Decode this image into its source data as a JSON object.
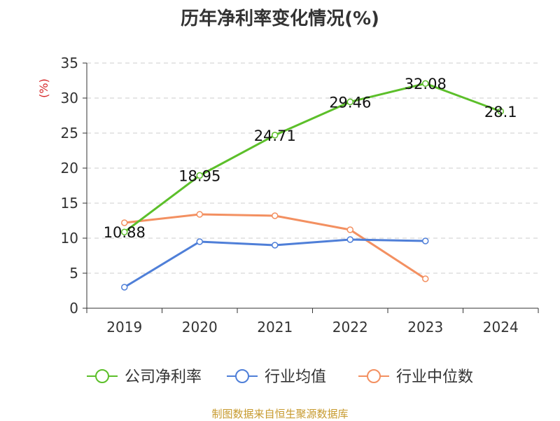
{
  "title": "历年净利率变化情况(%)",
  "source": "制图数据来自恒生聚源数据库",
  "chart_data": {
    "type": "line",
    "title": "历年净利率变化情况(%)",
    "ylabel": "(%)",
    "xlabel": "",
    "categories": [
      "2019",
      "2020",
      "2021",
      "2022",
      "2023",
      "2024"
    ],
    "ylim": [
      0,
      35
    ],
    "yticks": [
      0,
      5,
      10,
      15,
      20,
      25,
      30,
      35
    ],
    "grid": true,
    "legend_position": "bottom",
    "series": [
      {
        "name": "公司净利率",
        "color": "#5cbf2a",
        "values": [
          10.88,
          18.95,
          24.71,
          29.46,
          32.08,
          28.1
        ],
        "labels": [
          "10.88",
          "18.95",
          "24.71",
          "29.46",
          "32.08",
          "28.1"
        ]
      },
      {
        "name": "行业均值",
        "color": "#4f7fd8",
        "values": [
          3.0,
          9.5,
          9.0,
          9.8,
          9.6,
          null
        ]
      },
      {
        "name": "行业中位数",
        "color": "#f39061",
        "values": [
          12.2,
          13.4,
          13.2,
          11.2,
          4.2,
          null
        ]
      }
    ]
  }
}
